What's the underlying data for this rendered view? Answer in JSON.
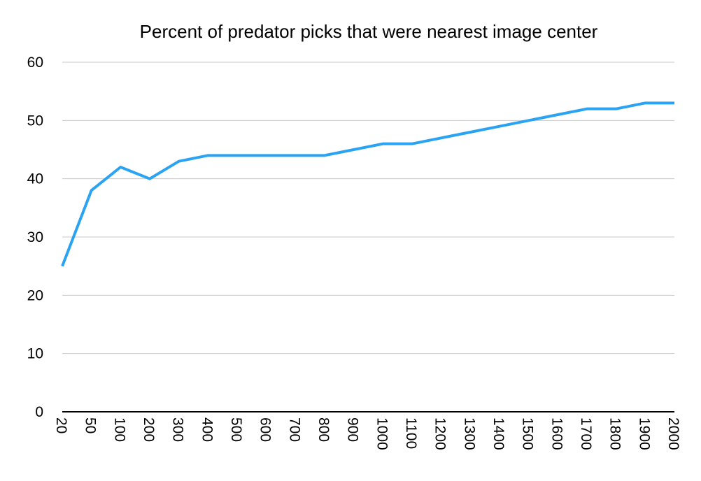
{
  "chart_data": {
    "type": "line",
    "title": "Percent of predator picks that were nearest image center",
    "xlabel": "",
    "ylabel": "",
    "categories": [
      "20",
      "50",
      "100",
      "200",
      "300",
      "400",
      "500",
      "600",
      "700",
      "800",
      "900",
      "1000",
      "1100",
      "1200",
      "1300",
      "1400",
      "1500",
      "1600",
      "1700",
      "1800",
      "1900",
      "2000"
    ],
    "series": [
      {
        "color": "#2aa3f2",
        "values": [
          25,
          38,
          42,
          40,
          43,
          44,
          44,
          44,
          44,
          44,
          45,
          46,
          46,
          47,
          48,
          49,
          50,
          51,
          52,
          52,
          53,
          53
        ]
      }
    ],
    "ylim": [
      0,
      60
    ],
    "yticks": [
      0,
      10,
      20,
      30,
      40,
      50,
      60
    ],
    "grid": true,
    "legend": "none"
  }
}
